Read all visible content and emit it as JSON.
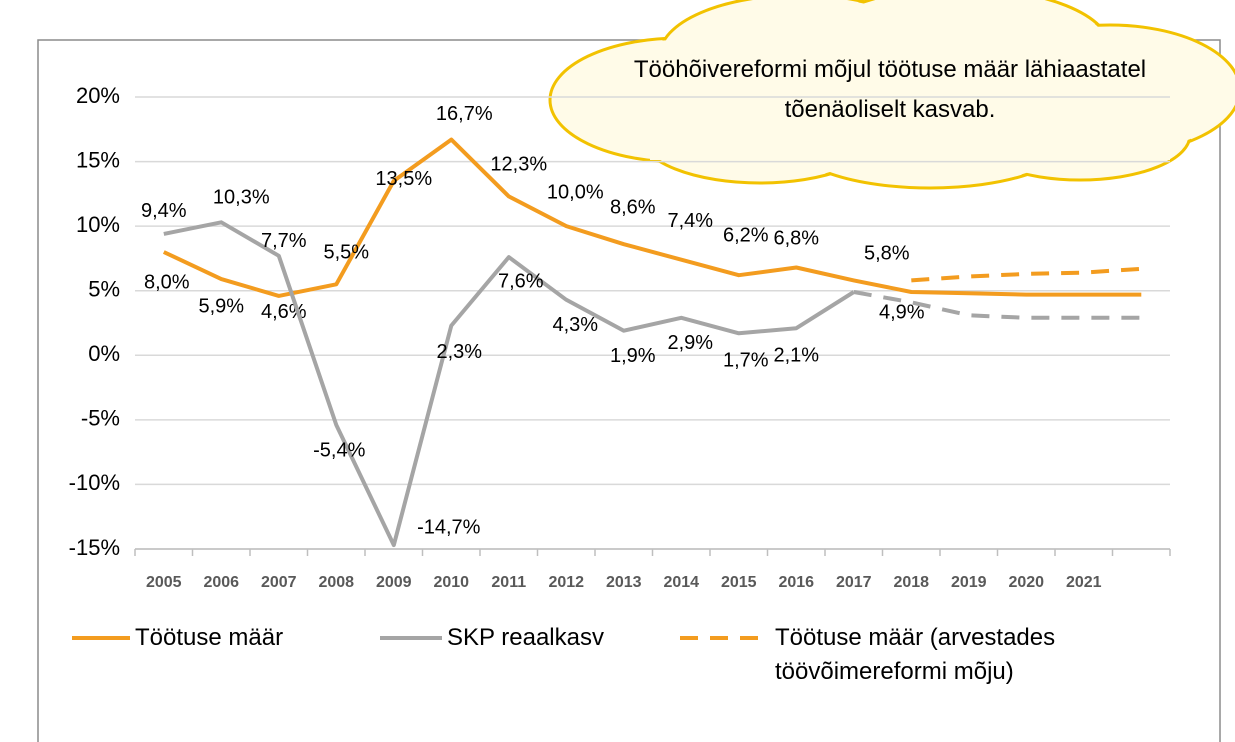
{
  "chart_data": {
    "type": "line",
    "annotation": "Tööhõivereformi mõjul töötuse määr lähiaastatel tõenäoliselt kasvab.",
    "categories": [
      "2005",
      "2006",
      "2007",
      "2008",
      "2009",
      "2010",
      "2011",
      "2012",
      "2013",
      "2014",
      "2015",
      "2016",
      "2017",
      "2018",
      "2019",
      "2020",
      "2021",
      null
    ],
    "series": [
      {
        "name": "Töötuse määr",
        "color": "#f39c1f",
        "dashed": false,
        "values": [
          8.0,
          5.9,
          4.6,
          5.5,
          13.5,
          16.7,
          12.3,
          10.0,
          8.6,
          7.4,
          6.2,
          6.8,
          5.8,
          4.9,
          4.8,
          4.7,
          4.7,
          4.7
        ],
        "value_labels": [
          "8,0%",
          "5,9%",
          "4,6%",
          "5,5%",
          "13,5%",
          "16,7%",
          "12,3%",
          "10,0%",
          "8,6%",
          "7,4%",
          "6,2%",
          "6,8%",
          "5,8%",
          null,
          null,
          null,
          null,
          null
        ]
      },
      {
        "name": "SKP reaalkasv",
        "color": "#a5a5a5",
        "dashed": false,
        "values": [
          9.4,
          10.3,
          7.7,
          -5.4,
          -14.7,
          2.3,
          7.6,
          4.3,
          1.9,
          2.9,
          1.7,
          2.1,
          4.9,
          null,
          null,
          null,
          null,
          null
        ],
        "value_labels": [
          "9,4%",
          "10,3%",
          "7,7%",
          "-5,4%",
          "-14,7%",
          "2,3%",
          "7,6%",
          "4,3%",
          "1,9%",
          "2,9%",
          "1,7%",
          "2,1%",
          "4,9%",
          null,
          null,
          null,
          null,
          null
        ]
      },
      {
        "name": "Töötuse määr (arvestades töövõimereformi mõju)",
        "color": "#f39c1f",
        "dashed": true,
        "values": [
          null,
          null,
          null,
          null,
          null,
          null,
          null,
          null,
          null,
          null,
          null,
          null,
          null,
          5.8,
          6.1,
          6.3,
          6.4,
          6.7
        ]
      },
      {
        "color": "#a5a5a5",
        "dashed": true,
        "values": [
          null,
          null,
          null,
          null,
          null,
          null,
          null,
          null,
          null,
          null,
          null,
          null,
          4.9,
          4.1,
          3.1,
          2.9,
          2.9,
          2.9
        ]
      }
    ],
    "ylim": [
      -15,
      20
    ],
    "yticks": [
      {
        "value": -15,
        "label": "-15%"
      },
      {
        "value": -10,
        "label": "-10%"
      },
      {
        "value": -5,
        "label": "-5%"
      },
      {
        "value": 0,
        "label": "0%"
      },
      {
        "value": 5,
        "label": "5%"
      },
      {
        "value": 10,
        "label": "10%"
      },
      {
        "value": 15,
        "label": "15%"
      },
      {
        "value": 20,
        "label": "20%"
      }
    ],
    "grid": true,
    "legend": "bottom"
  }
}
